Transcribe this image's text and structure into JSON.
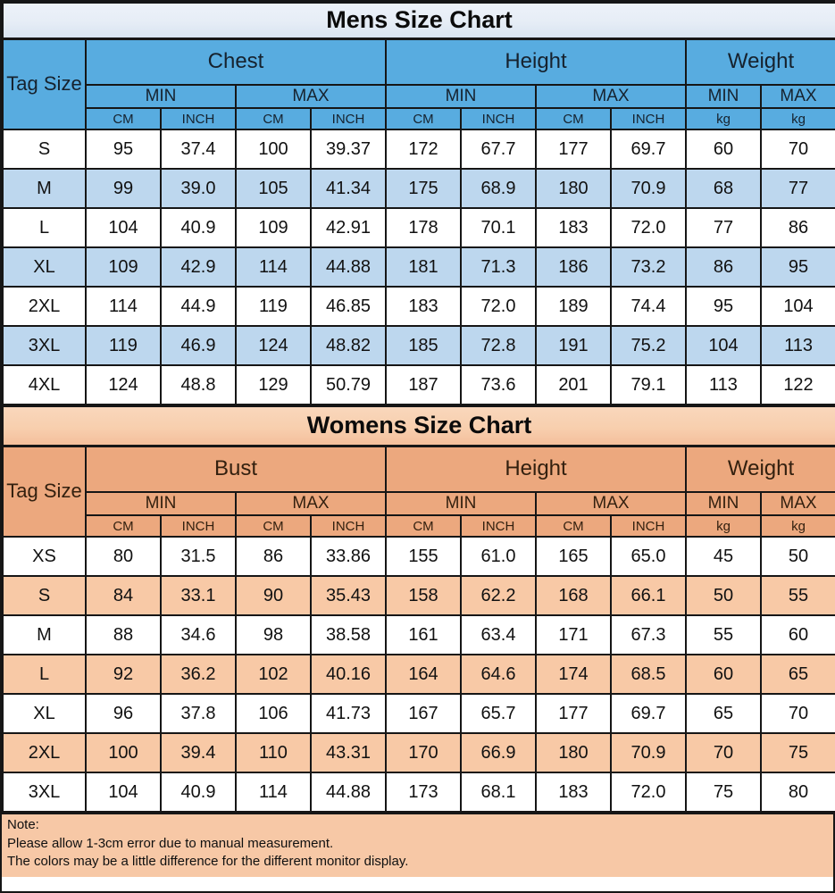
{
  "colors": {
    "mens_header": "#58ace0",
    "mens_alt_row": "#bdd7ee",
    "mens_title": "#e6edf6",
    "womens_header": "#eca87e",
    "womens_alt_row": "#f8c9a6",
    "womens_title": "#f8cfae",
    "note_bg": "#f7c8a6",
    "border": "#161616"
  },
  "mens": {
    "title": "Mens Size Chart",
    "tag_header": "Tag Size",
    "groups": [
      {
        "label": "Chest"
      },
      {
        "label": "Height"
      },
      {
        "label": "Weight"
      }
    ],
    "minmax": [
      "MIN",
      "MAX",
      "MIN",
      "MAX",
      "MIN",
      "MAX"
    ],
    "units": [
      "CM",
      "INCH",
      "CM",
      "INCH",
      "CM",
      "INCH",
      "CM",
      "INCH",
      "kg",
      "kg"
    ],
    "rows": [
      {
        "tag": "S",
        "values": [
          "95",
          "37.4",
          "100",
          "39.37",
          "172",
          "67.7",
          "177",
          "69.7",
          "60",
          "70"
        ]
      },
      {
        "tag": "M",
        "values": [
          "99",
          "39.0",
          "105",
          "41.34",
          "175",
          "68.9",
          "180",
          "70.9",
          "68",
          "77"
        ]
      },
      {
        "tag": "L",
        "values": [
          "104",
          "40.9",
          "109",
          "42.91",
          "178",
          "70.1",
          "183",
          "72.0",
          "77",
          "86"
        ]
      },
      {
        "tag": "XL",
        "values": [
          "109",
          "42.9",
          "114",
          "44.88",
          "181",
          "71.3",
          "186",
          "73.2",
          "86",
          "95"
        ]
      },
      {
        "tag": "2XL",
        "values": [
          "114",
          "44.9",
          "119",
          "46.85",
          "183",
          "72.0",
          "189",
          "74.4",
          "95",
          "104"
        ]
      },
      {
        "tag": "3XL",
        "values": [
          "119",
          "46.9",
          "124",
          "48.82",
          "185",
          "72.8",
          "191",
          "75.2",
          "104",
          "113"
        ]
      },
      {
        "tag": "4XL",
        "values": [
          "124",
          "48.8",
          "129",
          "50.79",
          "187",
          "73.6",
          "201",
          "79.1",
          "113",
          "122"
        ]
      }
    ]
  },
  "womens": {
    "title": "Womens Size Chart",
    "tag_header": "Tag Size",
    "groups": [
      {
        "label": "Bust"
      },
      {
        "label": "Height"
      },
      {
        "label": "Weight"
      }
    ],
    "minmax": [
      "MIN",
      "MAX",
      "MIN",
      "MAX",
      "MIN",
      "MAX"
    ],
    "units": [
      "CM",
      "INCH",
      "CM",
      "INCH",
      "CM",
      "INCH",
      "CM",
      "INCH",
      "kg",
      "kg"
    ],
    "rows": [
      {
        "tag": "XS",
        "values": [
          "80",
          "31.5",
          "86",
          "33.86",
          "155",
          "61.0",
          "165",
          "65.0",
          "45",
          "50"
        ]
      },
      {
        "tag": "S",
        "values": [
          "84",
          "33.1",
          "90",
          "35.43",
          "158",
          "62.2",
          "168",
          "66.1",
          "50",
          "55"
        ]
      },
      {
        "tag": "M",
        "values": [
          "88",
          "34.6",
          "98",
          "38.58",
          "161",
          "63.4",
          "171",
          "67.3",
          "55",
          "60"
        ]
      },
      {
        "tag": "L",
        "values": [
          "92",
          "36.2",
          "102",
          "40.16",
          "164",
          "64.6",
          "174",
          "68.5",
          "60",
          "65"
        ]
      },
      {
        "tag": "XL",
        "values": [
          "96",
          "37.8",
          "106",
          "41.73",
          "167",
          "65.7",
          "177",
          "69.7",
          "65",
          "70"
        ]
      },
      {
        "tag": "2XL",
        "values": [
          "100",
          "39.4",
          "110",
          "43.31",
          "170",
          "66.9",
          "180",
          "70.9",
          "70",
          "75"
        ]
      },
      {
        "tag": "3XL",
        "values": [
          "104",
          "40.9",
          "114",
          "44.88",
          "173",
          "68.1",
          "183",
          "72.0",
          "75",
          "80"
        ]
      }
    ]
  },
  "note": {
    "title": "Note:",
    "lines": [
      "Please allow 1-3cm error due to manual measurement.",
      "The colors may be a little difference for the different monitor display."
    ]
  }
}
